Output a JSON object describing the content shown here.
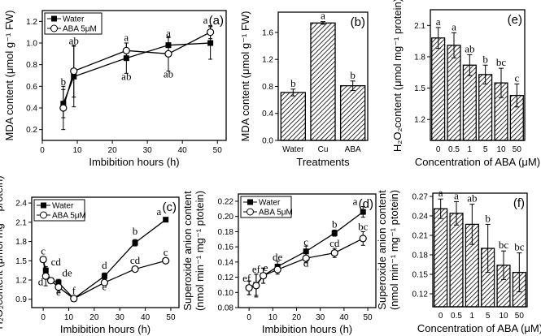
{
  "chart_data": [
    {
      "id": "a",
      "type": "line",
      "panel_label": "(a)",
      "xlabel": "Imbibition hours (h)",
      "ylabel": "MDA content (μmol g⁻¹ FW)",
      "xlim": [
        0,
        52.5
      ],
      "ylim": [
        0.1,
        1.3
      ],
      "xticks": [
        0,
        10,
        20,
        30,
        40,
        50
      ],
      "yticks": [
        0.2,
        0.4,
        0.6,
        0.8,
        1.0,
        1.2
      ],
      "ydec": 1,
      "legend": "top-left",
      "x": [
        6,
        9,
        24,
        36,
        48
      ],
      "series": [
        {
          "name": "Water",
          "marker": "filled-square",
          "values": [
            0.44,
            0.69,
            0.86,
            0.98,
            1.0
          ],
          "errors": [
            0.13,
            0.28,
            0.14,
            0.07,
            0.15
          ],
          "letters": [
            "",
            "",
            "",
            "",
            ""
          ],
          "letter_pos": "above"
        },
        {
          "name": "ABA 5μM",
          "marker": "open-circle",
          "values": [
            0.4,
            0.74,
            0.93,
            0.9,
            1.1
          ],
          "errors": [
            0.2,
            0.24,
            0.07,
            0.16,
            0.06
          ],
          "letters": [
            "",
            "",
            "",
            "",
            ""
          ],
          "letter_pos": "above"
        }
      ],
      "annotations": [
        {
          "x": 6,
          "y": 0.61,
          "text": "b"
        },
        {
          "x": 9,
          "y": 0.99,
          "text": "ab"
        },
        {
          "x": 24,
          "y": 1.02,
          "text": "a"
        },
        {
          "x": 36,
          "y": 1.06,
          "text": "a"
        },
        {
          "x": 48,
          "y": 1.18,
          "text": "a"
        },
        {
          "x": 24,
          "y": 0.66,
          "text": "ab"
        },
        {
          "x": 36,
          "y": 0.68,
          "text": "ab"
        }
      ]
    },
    {
      "id": "b",
      "type": "bar",
      "panel_label": "(b)",
      "xlabel": "Treatments",
      "ylabel": "MDA content (μmol g⁻¹ FW)",
      "ylim": [
        0,
        1.9
      ],
      "yticks": [
        0.0,
        0.4,
        0.8,
        1.2,
        1.6
      ],
      "ydec": 1,
      "categories": [
        "Water",
        "Cu",
        "ABA"
      ],
      "values": [
        0.71,
        1.74,
        0.81
      ],
      "errors": [
        0.05,
        0.02,
        0.07
      ],
      "letters": [
        "b",
        "a",
        "b"
      ]
    },
    {
      "id": "e",
      "type": "bar",
      "panel_label": "(e)",
      "xlabel": "Concentration of ABA (μM)",
      "ylabel": "H₂O₂content (μmol mg⁻¹ protein)",
      "ylim": [
        1.0,
        2.25
      ],
      "yticks": [
        1.2,
        1.5,
        1.8,
        2.1
      ],
      "ydec": 1,
      "categories": [
        "0",
        "0.5",
        "1",
        "5",
        "10",
        "50"
      ],
      "values": [
        1.98,
        1.91,
        1.72,
        1.63,
        1.55,
        1.43
      ],
      "errors": [
        0.1,
        0.12,
        0.1,
        0.09,
        0.14,
        0.11
      ],
      "letters": [
        "a",
        "a",
        "ab",
        "b",
        "bc",
        "c"
      ]
    },
    {
      "id": "c",
      "type": "line",
      "panel_label": "(c)",
      "xlabel": "Imbibition hours (h)",
      "ylabel": "H₂O₂content (μmol mg⁻¹ protein)",
      "xlim": [
        -4.5,
        53.2
      ],
      "ylim": [
        0.77,
        2.49
      ],
      "xticks": [
        0,
        10,
        20,
        30,
        40,
        50
      ],
      "yticks": [
        0.9,
        1.2,
        1.5,
        1.8,
        2.1,
        2.4
      ],
      "ydec": 1,
      "legend": "top-left",
      "x": [
        0,
        1,
        3,
        6,
        12,
        24,
        36,
        48
      ],
      "series": [
        {
          "name": "Water",
          "marker": "filled-square",
          "values": [
            1.52,
            1.35,
            1.19,
            1.16,
            0.91,
            1.26,
            1.78,
            2.14
          ],
          "errors": [
            0.03,
            0.04,
            0.03,
            0.05,
            0.02,
            0.05,
            0.05,
            0.02
          ]
        },
        {
          "name": "ABA 5μM",
          "marker": "open-circle",
          "values": [
            1.52,
            1.26,
            1.19,
            1.09,
            0.91,
            1.16,
            1.37,
            1.5
          ],
          "errors": [
            0.03,
            0.15,
            0.03,
            0.09,
            0.02,
            0.03,
            0.02,
            0.02
          ]
        }
      ],
      "annotations": [
        {
          "x": 0,
          "y": 1.6,
          "text": "c"
        },
        {
          "x": 5,
          "y": 1.43,
          "text": "cd"
        },
        {
          "x": -1,
          "y": 1.12,
          "text": "d"
        },
        {
          "x": 9,
          "y": 1.26,
          "text": "de"
        },
        {
          "x": 6,
          "y": 0.96,
          "text": "e"
        },
        {
          "x": 12,
          "y": 0.98,
          "text": "f"
        },
        {
          "x": 24,
          "y": 1.38,
          "text": "d"
        },
        {
          "x": 24,
          "y": 1.04,
          "text": "e"
        },
        {
          "x": 36,
          "y": 1.91,
          "text": "b"
        },
        {
          "x": 36,
          "y": 1.45,
          "text": "cd"
        },
        {
          "x": 46,
          "y": 2.21,
          "text": "a"
        },
        {
          "x": 48,
          "y": 1.58,
          "text": "c"
        }
      ]
    },
    {
      "id": "d",
      "type": "line",
      "panel_label": "(d)",
      "xlabel": "Imbibition hours (h)",
      "ylabel": "Superoxide anion content",
      "ylabel2": "(nmol min⁻¹ mg⁻¹  ptotein)",
      "xlim": [
        -4.5,
        53.4
      ],
      "ylim": [
        0.08,
        0.2296
      ],
      "xticks": [
        0,
        10,
        20,
        30,
        40,
        50
      ],
      "yticks": [
        0.08,
        0.1,
        0.12,
        0.14,
        0.16,
        0.18,
        0.2,
        0.22
      ],
      "ydec": 2,
      "legend": "top-left",
      "x": [
        0,
        3,
        6,
        12,
        24,
        36,
        48
      ],
      "series": [
        {
          "name": "Water",
          "marker": "filled-square",
          "values": [
            0.106,
            0.11,
            0.122,
            0.134,
            0.154,
            0.178,
            0.206
          ],
          "errors": [
            0.009,
            0.014,
            0.01,
            0.007,
            0.007,
            0.004,
            0.007
          ]
        },
        {
          "name": "ABA  5μM",
          "marker": "open-circle",
          "values": [
            0.106,
            0.109,
            0.122,
            0.13,
            0.145,
            0.152,
            0.171
          ],
          "errors": [
            0.009,
            0.015,
            0.01,
            0.006,
            0.006,
            0.006,
            0.009
          ]
        }
      ],
      "annotations": [
        {
          "x": -1,
          "y": 0.114,
          "text": "ef"
        },
        {
          "x": 3,
          "y": 0.126,
          "text": "ef"
        },
        {
          "x": 7,
          "y": 0.128,
          "text": "e"
        },
        {
          "x": 12,
          "y": 0.142,
          "text": "de"
        },
        {
          "x": 24,
          "y": 0.162,
          "text": "c"
        },
        {
          "x": 24,
          "y": 0.134,
          "text": "d"
        },
        {
          "x": 36,
          "y": 0.185,
          "text": "b"
        },
        {
          "x": 36,
          "y": 0.16,
          "text": "cd"
        },
        {
          "x": 46,
          "y": 0.215,
          "text": "a"
        },
        {
          "x": 48,
          "y": 0.182,
          "text": "bc"
        }
      ]
    },
    {
      "id": "f",
      "type": "bar",
      "panel_label": "(f)",
      "xlabel": "Concentration of ABA (μM)",
      "ylabel": "Superoxide anion content",
      "ylabel2": "(nmol min⁻¹ mg⁻¹  ptotein)",
      "ylim": [
        0.1,
        0.275
      ],
      "yticks": [
        0.12,
        0.15,
        0.18,
        0.21,
        0.24,
        0.27
      ],
      "ydec": 2,
      "categories": [
        "0",
        "0.5",
        "1",
        "5",
        "10",
        "50"
      ],
      "values": [
        0.251,
        0.244,
        0.227,
        0.19,
        0.164,
        0.153
      ],
      "errors": [
        0.015,
        0.018,
        0.031,
        0.037,
        0.022,
        0.03
      ],
      "letters": [
        "a",
        "a",
        "ab",
        "b",
        "bc",
        "bc"
      ]
    }
  ]
}
